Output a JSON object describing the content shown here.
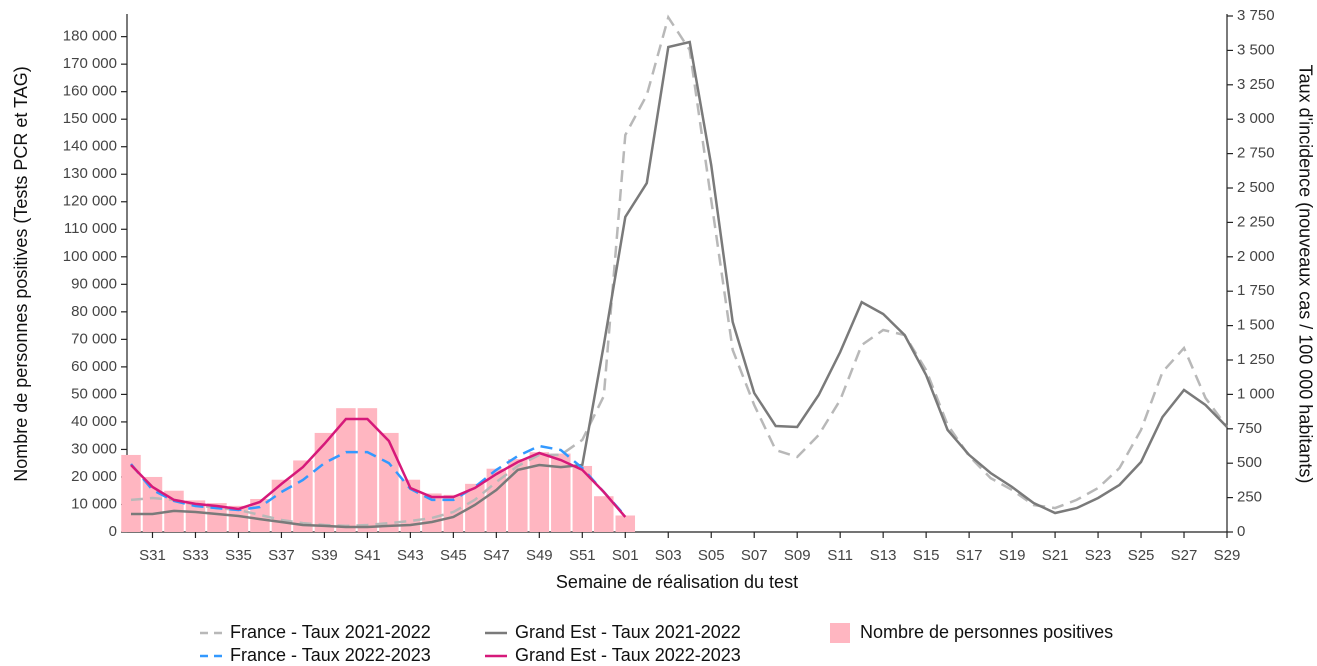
{
  "chart_data": {
    "type": "bar-line",
    "x_label": "Semaine de réalisation du test",
    "y_label": "Nombre de personnes positives (Tests PCR et TAG)",
    "y2_label": "Taux d'incidence (nouveaux cas / 100 000 habitants)",
    "categories": [
      null,
      "S31",
      null,
      "S33",
      null,
      "S35",
      null,
      "S37",
      null,
      "S39",
      null,
      "S41",
      null,
      "S43",
      null,
      "S45",
      null,
      "S47",
      null,
      "S49",
      null,
      "S51",
      null,
      "S01",
      null,
      "S03",
      null,
      "S05",
      null,
      "S07",
      null,
      "S09",
      null,
      "S11",
      null,
      "S13",
      null,
      "S15",
      null,
      "S17",
      null,
      "S19",
      null,
      "S21",
      null,
      "S23",
      null,
      "S25",
      null,
      "S27",
      null,
      "S29"
    ],
    "ylim": [
      0,
      187500
    ],
    "yticks": [
      {
        "value": 0,
        "label": "0"
      },
      {
        "value": 10000,
        "label": "10 000"
      },
      {
        "value": 20000,
        "label": "20 000"
      },
      {
        "value": 30000,
        "label": "30 000"
      },
      {
        "value": 40000,
        "label": "40 000"
      },
      {
        "value": 50000,
        "label": "50 000"
      },
      {
        "value": 60000,
        "label": "60 000"
      },
      {
        "value": 70000,
        "label": "70 000"
      },
      {
        "value": 80000,
        "label": "80 000"
      },
      {
        "value": 90000,
        "label": "90 000"
      },
      {
        "value": 100000,
        "label": "100 000"
      },
      {
        "value": 110000,
        "label": "110 000"
      },
      {
        "value": 120000,
        "label": "120 000"
      },
      {
        "value": 130000,
        "label": "130 000"
      },
      {
        "value": 140000,
        "label": "140 000"
      },
      {
        "value": 150000,
        "label": "150 000"
      },
      {
        "value": 160000,
        "label": "160 000"
      },
      {
        "value": 170000,
        "label": "170 000"
      },
      {
        "value": 180000,
        "label": "180 000"
      }
    ],
    "y2lim": [
      0,
      3750
    ],
    "y2ticks": [
      0,
      250,
      500,
      750,
      {
        "value": 1000,
        "label": "1 000"
      },
      {
        "value": 1250,
        "label": "1 250"
      },
      {
        "value": 1500,
        "label": "1 500"
      },
      {
        "value": 1750,
        "label": "1 750"
      },
      {
        "value": 2000,
        "label": "2 000"
      },
      {
        "value": 2250,
        "label": "2 250"
      },
      {
        "value": 2500,
        "label": "2 500"
      },
      {
        "value": 2750,
        "label": "2 750"
      },
      {
        "value": 3000,
        "label": "3 000"
      },
      {
        "value": 3250,
        "label": "3 250"
      },
      {
        "value": 3500,
        "label": "3 500"
      },
      {
        "value": 3750,
        "label": "3 750"
      }
    ],
    "series": [
      {
        "name": "Nombre de personnes positives",
        "type": "bar",
        "color": "#ffb6c1",
        "values": [
          28000,
          20000,
          15000,
          11500,
          10500,
          9500,
          12000,
          19000,
          26000,
          36000,
          45000,
          45000,
          36000,
          19000,
          14000,
          13500,
          17500,
          23000,
          26500,
          29000,
          28500,
          24000,
          13000,
          6000,
          null,
          null,
          null,
          null,
          null,
          null,
          null,
          null,
          null,
          null,
          null,
          null,
          null,
          null,
          null,
          null,
          null,
          null,
          null,
          null,
          null,
          null,
          null,
          null,
          null,
          null,
          null,
          null
        ]
      },
      {
        "name": "France - Taux 2021-2022",
        "type": "line",
        "axis": "y2",
        "color": "#b8b8b8",
        "dashed": true,
        "values": [
          233,
          247,
          233,
          196,
          174,
          160,
          124,
          87,
          65,
          51,
          44,
          51,
          65,
          80,
          102,
          145,
          233,
          363,
          480,
          560,
          560,
          669,
          988,
          2885,
          3176,
          3740,
          3503,
          2413,
          1323,
          923,
          596,
          545,
          705,
          959,
          1359,
          1468,
          1432,
          1177,
          778,
          552,
          392,
          305,
          196,
          174,
          233,
          320,
          465,
          741,
          1163,
          1337,
          974,
          763
        ]
      },
      {
        "name": "Grand Est - Taux 2021-2022",
        "type": "line",
        "axis": "y2",
        "color": "#7a7a7a",
        "dashed": false,
        "values": [
          131,
          131,
          153,
          145,
          131,
          116,
          94,
          73,
          51,
          44,
          36,
          36,
          44,
          51,
          73,
          109,
          196,
          305,
          451,
          487,
          472,
          487,
          1359,
          2289,
          2536,
          3525,
          3561,
          2667,
          1526,
          1010,
          770,
          763,
          996,
          1308,
          1671,
          1584,
          1432,
          1141,
          741,
          560,
          429,
          327,
          211,
          138,
          174,
          247,
          342,
          509,
          836,
          1032,
          923,
          763
        ]
      },
      {
        "name": "France - Taux 2022-2023",
        "type": "line",
        "axis": "y2",
        "color": "#3399ff",
        "dashed": true,
        "values": [
          494,
          305,
          225,
          189,
          174,
          160,
          182,
          291,
          378,
          501,
          581,
          581,
          501,
          313,
          233,
          233,
          327,
          451,
          552,
          625,
          596,
          465,
          291,
          116,
          null,
          null,
          null,
          null,
          null,
          null,
          null,
          null,
          null,
          null,
          null,
          null,
          null,
          null,
          null,
          null,
          null,
          null,
          null,
          null,
          null,
          null,
          null,
          null,
          null,
          null,
          null,
          null
        ]
      },
      {
        "name": "Grand Est - Taux 2022-2023",
        "type": "line",
        "axis": "y2",
        "color": "#d6197a",
        "dashed": false,
        "values": [
          487,
          327,
          233,
          204,
          189,
          167,
          218,
          349,
          472,
          640,
          821,
          821,
          661,
          320,
          254,
          254,
          320,
          421,
          509,
          574,
          523,
          451,
          291,
          109,
          null,
          null,
          null,
          null,
          null,
          null,
          null,
          null,
          null,
          null,
          null,
          null,
          null,
          null,
          null,
          null,
          null,
          null,
          null,
          null,
          null,
          null,
          null,
          null,
          null,
          null,
          null,
          null
        ]
      }
    ]
  }
}
